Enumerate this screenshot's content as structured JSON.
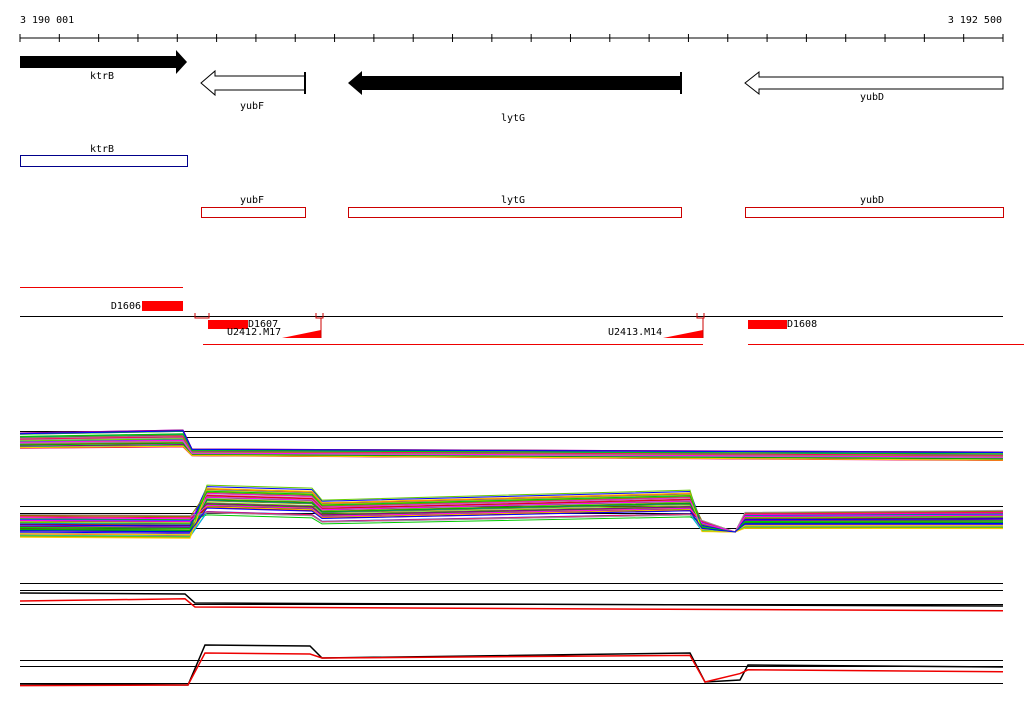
{
  "ruler": {
    "start": "3 190 001",
    "end": "3 192 500"
  },
  "genes": [
    "ktrB",
    "yubF",
    "lytG",
    "yubD"
  ],
  "transcripts": [
    "ktrB",
    "yubF",
    "lytG",
    "yubD"
  ],
  "features": [
    "D1606",
    "D1607",
    "U2412.M17",
    "U2413.M14",
    "D1608"
  ]
}
